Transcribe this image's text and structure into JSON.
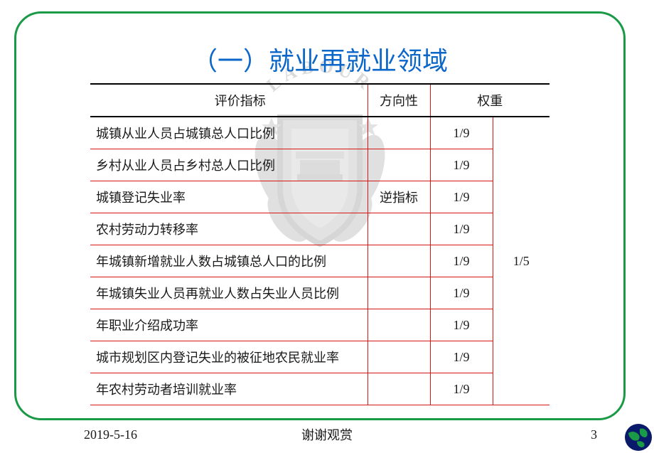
{
  "title": "（一）就业再就业领域",
  "table": {
    "headers": {
      "indicator": "评价指标",
      "direction": "方向性",
      "weight": "权重"
    },
    "rows": [
      {
        "indicator": "城镇从业人员占城镇总人口比例",
        "direction": "",
        "w1": "1/9"
      },
      {
        "indicator": "乡村从业人员占乡村总人口比例",
        "direction": "",
        "w1": "1/9"
      },
      {
        "indicator": "城镇登记失业率",
        "direction": "逆指标",
        "w1": "1/9"
      },
      {
        "indicator": "农村劳动力转移率",
        "direction": "",
        "w1": "1/9"
      },
      {
        "indicator": "年城镇新增就业人数占城镇总人口的比例",
        "direction": "",
        "w1": "1/9"
      },
      {
        "indicator": "年城镇失业人员再就业人数占失业人员比例",
        "direction": "",
        "w1": "1/9"
      },
      {
        "indicator": "年职业介绍成功率",
        "direction": "",
        "w1": "1/9"
      },
      {
        "indicator": "城市规划区内登记失业的被征地农民就业率",
        "direction": "",
        "w1": "1/9"
      },
      {
        "indicator": "年农村劳动者培训就业率",
        "direction": "",
        "w1": "1/9"
      }
    ],
    "group_weight": "1/5",
    "border_color_outer": "#000000",
    "border_color_inner": "#d91616"
  },
  "colors": {
    "frame_border": "#1a9946",
    "title": "#0b66c9",
    "text": "#1a1a1a",
    "background": "#ffffff"
  },
  "footer": {
    "date": "2019-5-16",
    "text": "谢谢观赏",
    "page": "3"
  },
  "watermark_label": "LABOUR"
}
